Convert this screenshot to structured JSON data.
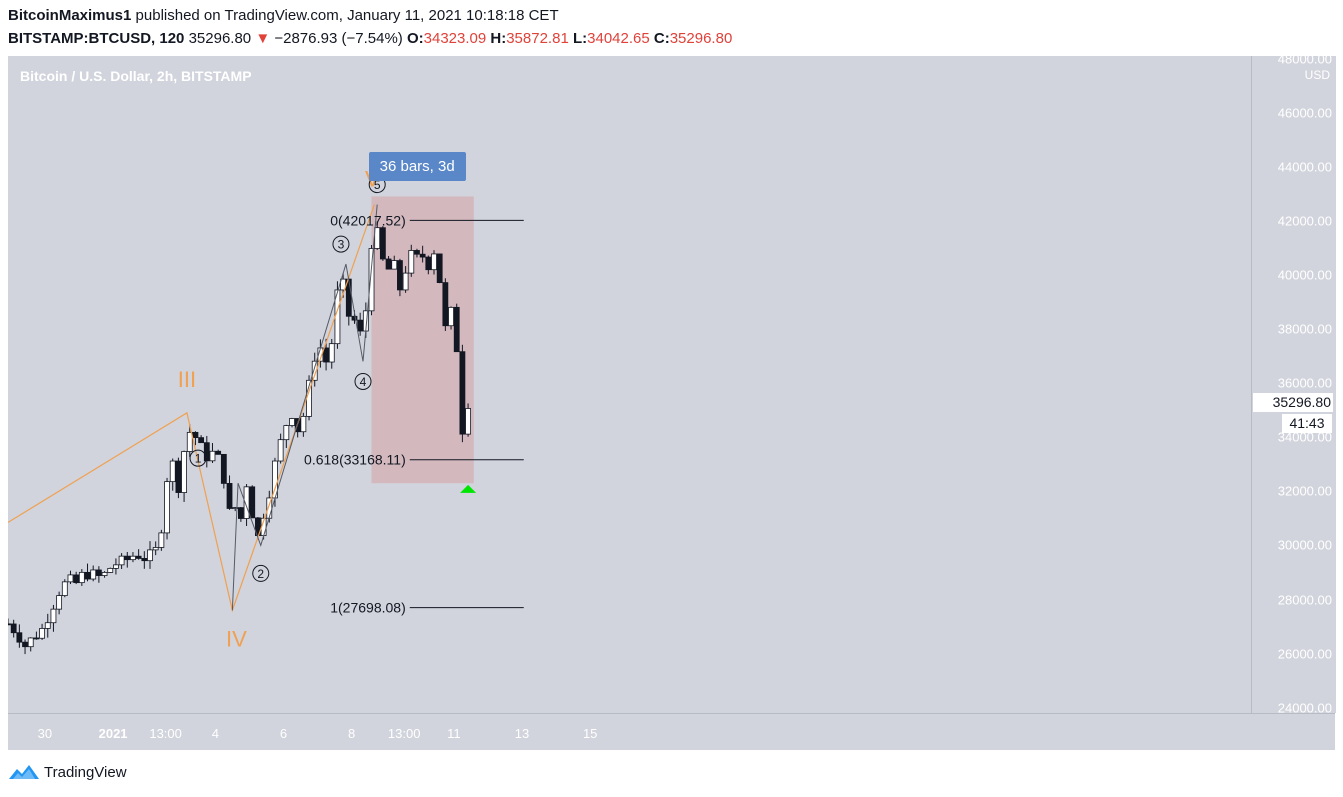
{
  "header": {
    "author": "BitcoinMaximus1",
    "published_text": "published on TradingView.com, January 11, 2021 10:18:18 CET",
    "symbol_interval": "BITSTAMP:BTCUSD, 120",
    "last_price": "35296.80",
    "change_arrow": "▼",
    "change": "−2876.93 (−7.54%)",
    "o_label": "O:",
    "o_value": "34323.09",
    "h_label": "H:",
    "h_value": "35872.81",
    "l_label": "L:",
    "l_value": "34042.65",
    "c_label": "C:",
    "c_value": "35296.80"
  },
  "chart": {
    "symbol_label": "Bitcoin / U.S. Dollar, 2h, BITSTAMP",
    "currency": "USD",
    "price_tag": "35296.80",
    "countdown": "41:43",
    "bars_label": "36 bars, 3d"
  },
  "footer": {
    "brand": "TradingView"
  },
  "colors": {
    "plot_bg": "#d1d4dc",
    "wave_orange": "#f0a050",
    "fib_zone": "rgba(214,160,165,0.55)",
    "bars_tag": "#5a87c8",
    "up_candle": "#ffffff",
    "down_candle": "#131722",
    "arrow_green": "#00e600"
  },
  "chart_data": {
    "type": "candlestick",
    "title": "Bitcoin / U.S. Dollar, 2h, BITSTAMP",
    "y_unit": "USD",
    "ylim": [
      24000,
      48000
    ],
    "y_ticks": [
      "48000.00",
      "46000.00",
      "44000.00",
      "42000.00",
      "40000.00",
      "38000.00",
      "36000.00",
      "34000.00",
      "32000.00",
      "30000.00",
      "28000.00",
      "26000.00",
      "24000.00"
    ],
    "x_ticks": [
      {
        "label": "30",
        "bold": false
      },
      {
        "label": "2021",
        "bold": true
      },
      {
        "label": "13:00",
        "bold": false
      },
      {
        "label": "4",
        "bold": false
      },
      {
        "label": "6",
        "bold": false
      },
      {
        "label": "8",
        "bold": false
      },
      {
        "label": "13:00",
        "bold": false
      },
      {
        "label": "11",
        "bold": false
      },
      {
        "label": "13",
        "bold": false
      },
      {
        "label": "15",
        "bold": false
      }
    ],
    "close_path": [
      [
        "2020-12-28 22:00",
        27100
      ],
      [
        "2020-12-29 04:00",
        26800
      ],
      [
        "2020-12-29 10:00",
        26300
      ],
      [
        "2020-12-29 16:00",
        26600
      ],
      [
        "2020-12-29 22:00",
        26900
      ],
      [
        "2020-12-30 04:00",
        27600
      ],
      [
        "2020-12-30 10:00",
        28300
      ],
      [
        "2020-12-30 16:00",
        28700
      ],
      [
        "2020-12-30 22:00",
        28600
      ],
      [
        "2020-12-31 04:00",
        29000
      ],
      [
        "2020-12-31 10:00",
        28900
      ],
      [
        "2020-12-31 16:00",
        28800
      ],
      [
        "2021-01-01 00:00",
        29300
      ],
      [
        "2021-01-01 08:00",
        29400
      ],
      [
        "2021-01-01 16:00",
        29700
      ],
      [
        "2021-01-02 00:00",
        29500
      ],
      [
        "2021-01-02 06:00",
        29800
      ],
      [
        "2021-01-02 10:00",
        30700
      ],
      [
        "2021-01-02 14:00",
        32500
      ],
      [
        "2021-01-02 18:00",
        33000
      ],
      [
        "2021-01-02 22:00",
        32200
      ],
      [
        "2021-01-03 02:00",
        33500
      ],
      [
        "2021-01-03 06:00",
        34200
      ],
      [
        "2021-01-03 10:00",
        34000
      ],
      [
        "2021-01-03 14:00",
        33600
      ],
      [
        "2021-01-03 18:00",
        33300
      ],
      [
        "2021-01-03 22:00",
        33400
      ],
      [
        "2021-01-04 02:00",
        33200
      ],
      [
        "2021-01-04 06:00",
        32500
      ],
      [
        "2021-01-04 10:00",
        31200
      ],
      [
        "2021-01-04 14:00",
        31400
      ],
      [
        "2021-01-04 18:00",
        31000
      ],
      [
        "2021-01-04 22:00",
        32300
      ],
      [
        "2021-01-05 02:00",
        31200
      ],
      [
        "2021-01-05 06:00",
        30300
      ],
      [
        "2021-01-05 10:00",
        31200
      ],
      [
        "2021-01-05 14:00",
        32000
      ],
      [
        "2021-01-05 18:00",
        33000
      ],
      [
        "2021-01-05 22:00",
        33800
      ],
      [
        "2021-01-06 02:00",
        34500
      ],
      [
        "2021-01-06 06:00",
        34900
      ],
      [
        "2021-01-06 10:00",
        34300
      ],
      [
        "2021-01-06 14:00",
        34800
      ],
      [
        "2021-01-06 18:00",
        35900
      ],
      [
        "2021-01-06 22:00",
        37000
      ],
      [
        "2021-01-07 02:00",
        37300
      ],
      [
        "2021-01-07 06:00",
        36800
      ],
      [
        "2021-01-07 10:00",
        37500
      ],
      [
        "2021-01-07 14:00",
        39300
      ],
      [
        "2021-01-07 18:00",
        39600
      ],
      [
        "2021-01-07 22:00",
        38500
      ],
      [
        "2021-01-08 02:00",
        38300
      ],
      [
        "2021-01-08 06:00",
        37800
      ],
      [
        "2021-01-08 10:00",
        38700
      ],
      [
        "2021-01-08 14:00",
        41200
      ],
      [
        "2021-01-08 18:00",
        41500
      ],
      [
        "2021-01-08 22:00",
        40500
      ],
      [
        "2021-01-09 02:00",
        40200
      ],
      [
        "2021-01-09 06:00",
        40300
      ],
      [
        "2021-01-09 10:00",
        39500
      ],
      [
        "2021-01-09 14:00",
        40200
      ],
      [
        "2021-01-09 18:00",
        40700
      ],
      [
        "2021-01-09 22:00",
        40600
      ],
      [
        "2021-01-10 02:00",
        40700
      ],
      [
        "2021-01-10 06:00",
        40400
      ],
      [
        "2021-01-10 10:00",
        40900
      ],
      [
        "2021-01-10 14:00",
        39800
      ],
      [
        "2021-01-10 18:00",
        38000
      ],
      [
        "2021-01-10 22:00",
        38600
      ],
      [
        "2021-01-11 02:00",
        37300
      ],
      [
        "2021-01-11 06:00",
        34300
      ],
      [
        "2021-01-11 10:00",
        35296.8
      ]
    ],
    "wave_degree_labels": [
      {
        "label": "III",
        "time": "2021-01-03 04:00",
        "price": 34900
      },
      {
        "label": "IV",
        "time": "2021-01-04 12:00",
        "price": 27600
      },
      {
        "label": "V",
        "time": "2021-01-08 16:00",
        "price": 42600
      }
    ],
    "subwave_labels": [
      {
        "label": "1",
        "time": "2021-01-04 16:00",
        "price": 32300
      },
      {
        "label": "2",
        "time": "2021-01-05 08:00",
        "price": 30000
      },
      {
        "label": "3",
        "time": "2021-01-07 20:00",
        "price": 40400
      },
      {
        "label": "4",
        "time": "2021-01-08 08:00",
        "price": 36800
      },
      {
        "label": "5",
        "time": "2021-01-08 18:00",
        "price": 42600
      }
    ],
    "fib_levels": [
      {
        "label": "0(42017.52)",
        "ratio": 0,
        "price": 42017.52
      },
      {
        "label": "0.618(33168.11)",
        "ratio": 0.618,
        "price": 33168.11
      },
      {
        "label": "1(27698.08)",
        "ratio": 1,
        "price": 27698.08
      }
    ],
    "date_range_measure": {
      "label": "36 bars, 3d",
      "from": "2021-01-08 14:00",
      "to": "2021-01-11 14:00",
      "price_top": 42900,
      "price_bottom": 32300
    },
    "marker": {
      "type": "up-arrow",
      "time": "2021-01-11 10:00",
      "price": 32200
    }
  }
}
